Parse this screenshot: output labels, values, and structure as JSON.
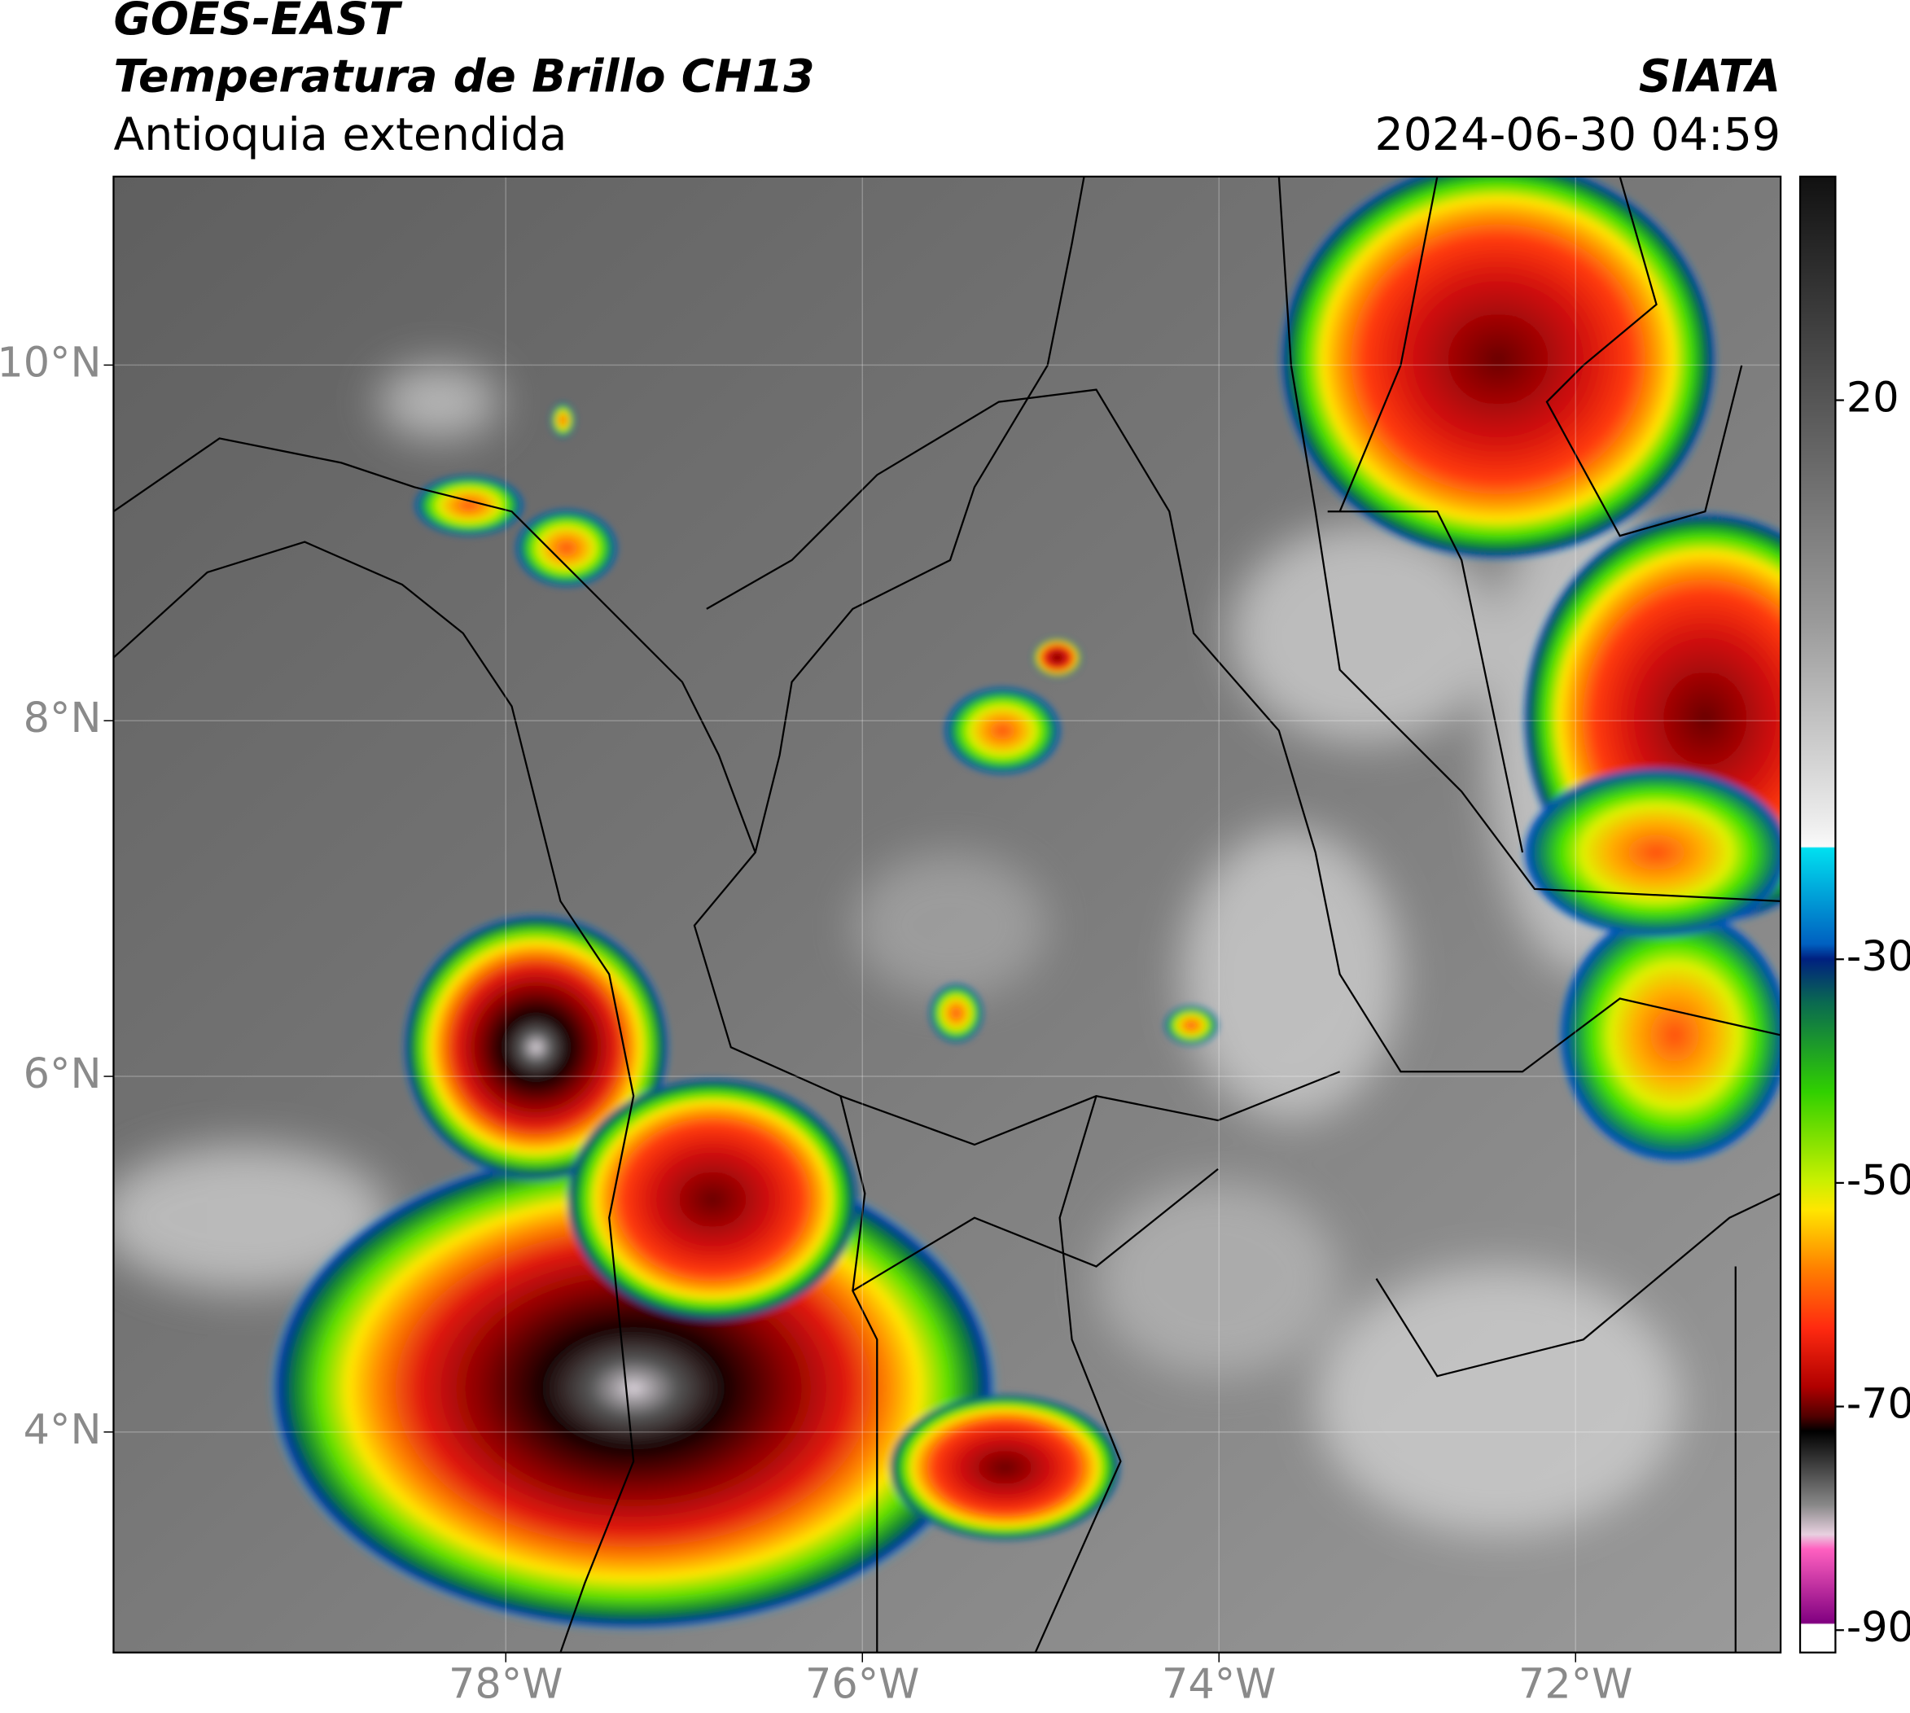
{
  "header": {
    "title": "GOES-EAST",
    "subtitle": "Temperatura de Brillo CH13",
    "region": "Antioquia extendida",
    "source": "SIATA",
    "timestamp": "2024-06-30 04:59"
  },
  "map": {
    "xlim": [
      -80.2,
      -70.85
    ],
    "ylim": [
      2.76,
      11.06
    ],
    "xticks": [
      {
        "value": -78,
        "label": "78°W"
      },
      {
        "value": -76,
        "label": "76°W"
      },
      {
        "value": -74,
        "label": "74°W"
      },
      {
        "value": -72,
        "label": "72°W"
      }
    ],
    "yticks": [
      {
        "value": 4,
        "label": "4°N"
      },
      {
        "value": 6,
        "label": "6°N"
      },
      {
        "value": 8,
        "label": "8°N"
      },
      {
        "value": 10,
        "label": "10°N"
      }
    ],
    "grid": true
  },
  "colorbar": {
    "clim": [
      -92,
      40
    ],
    "ticks": [
      20,
      -30,
      -50,
      -70,
      -90
    ]
  }
}
